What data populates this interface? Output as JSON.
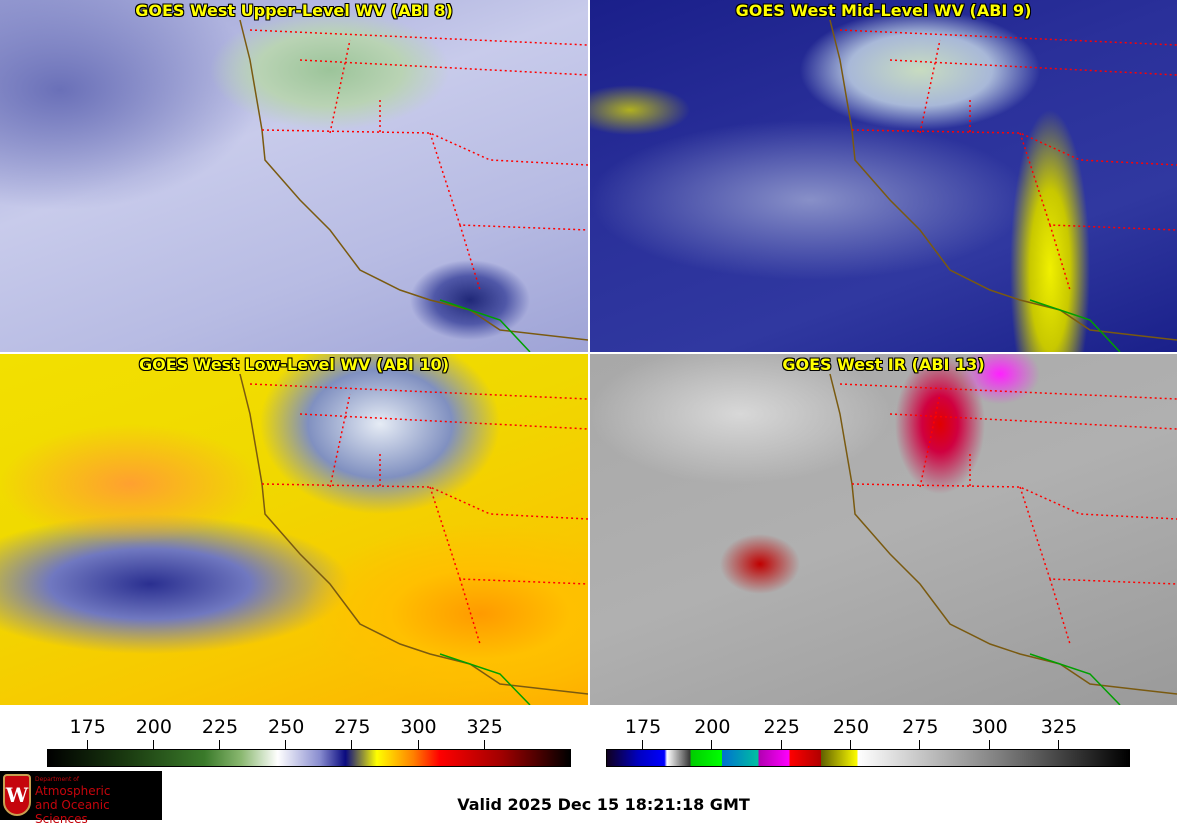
{
  "panels": [
    {
      "title": "GOES West Upper-Level WV (ABI 8)"
    },
    {
      "title": "GOES West Mid-Level WV (ABI 9)"
    },
    {
      "title": "GOES West Low-Level WV (ABI 10)"
    },
    {
      "title": "GOES West IR (ABI 13)"
    }
  ],
  "colorbars": [
    {
      "name": "water-vapor",
      "range": [
        160,
        358
      ],
      "ticks": [
        "175",
        "200",
        "225",
        "250",
        "275",
        "300",
        "325"
      ]
    },
    {
      "name": "infrared",
      "range": [
        162,
        351
      ],
      "ticks": [
        "175",
        "200",
        "225",
        "250",
        "275",
        "300",
        "325"
      ]
    }
  ],
  "logo": {
    "line1": "Department of",
    "line2": "Atmospheric",
    "line3": "and Oceanic Sciences",
    "emblem": "W"
  },
  "valid_time": "Valid 2025 Dec 15 18:21:18 GMT",
  "colors": {
    "title": "#ffff00",
    "state_borders": "#ff0000",
    "coastline": "#7a5a10",
    "mexico_border": "#00a000"
  }
}
